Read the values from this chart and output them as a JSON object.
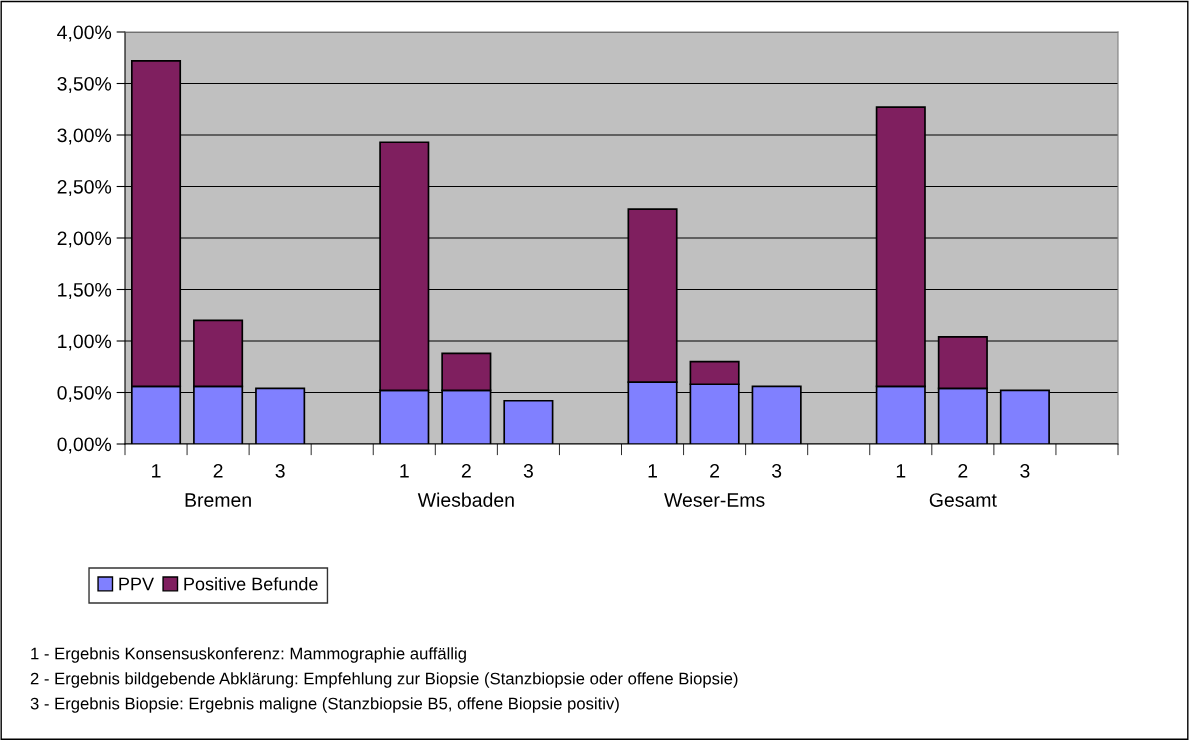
{
  "chart_data": {
    "type": "bar",
    "stacked": true,
    "categories": [
      "1",
      "2",
      "3",
      null,
      "1",
      "2",
      "3",
      null,
      "1",
      "2",
      "3",
      null,
      "1",
      "2",
      "3",
      null
    ],
    "series": [
      {
        "name": "PPV",
        "color": "#8080ff",
        "values": [
          0.56,
          0.56,
          0.54,
          null,
          0.52,
          0.52,
          0.42,
          null,
          0.6,
          0.58,
          0.56,
          null,
          0.56,
          0.54,
          0.52,
          null
        ]
      },
      {
        "name": "Positive Befunde",
        "color": "#7f1f5f",
        "values": [
          3.16,
          0.64,
          null,
          null,
          2.41,
          0.36,
          null,
          null,
          1.68,
          0.22,
          null,
          null,
          2.71,
          0.5,
          null,
          null
        ]
      }
    ],
    "ylim": [
      0,
      4
    ],
    "yticks": [
      {
        "value": 0,
        "label": "0,00%"
      },
      {
        "value": 0.5,
        "label": "0,50%"
      },
      {
        "value": 1,
        "label": "1,00%"
      },
      {
        "value": 1.5,
        "label": "1,50%"
      },
      {
        "value": 2,
        "label": "2,00%"
      },
      {
        "value": 2.5,
        "label": "2,50%"
      },
      {
        "value": 3,
        "label": "3,00%"
      },
      {
        "value": 3.5,
        "label": "3,50%"
      },
      {
        "value": 4,
        "label": "4,00%"
      }
    ],
    "grid": "y",
    "legend": "bottom left",
    "annotations": [
      "Bremen",
      "Wiesbaden",
      "Weser-Ems",
      "Gesamt",
      "1 - Ergebnis Konsensuskonferenz: Mammographie auffällig",
      "2 - Ergebnis bildgebende Abklärung: Empfehlung zur Biopsie (Stanzbiopsie oder offene Biopsie)",
      "3 - Ergebnis Biopsie: Ergebnis maligne (Stanzbiopsie B5, offene Biopsie positiv)"
    ]
  }
}
